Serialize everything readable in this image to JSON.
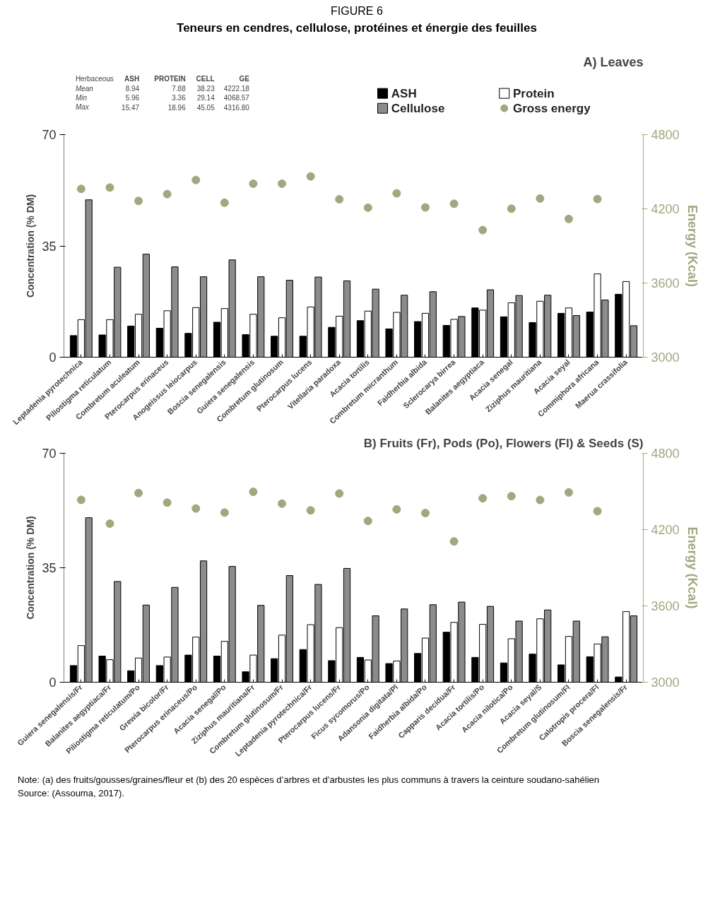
{
  "chart_data": [
    {
      "type": "bar",
      "title": "A) Leaves",
      "categories": [
        "Leptadenia pyrotechnica",
        "Piliostigma reticulatum",
        "Combretum aculeatum",
        "Pterocarpus erinaceus",
        "Anogeissus leiocarpus",
        "Boscia senegalensis",
        "Guiera senegalensis",
        "Combretum glutinosum",
        "Pterocarpus lucens",
        "Vitellaria paradoxa",
        "Acacia tortilis",
        "Combretum micranthum",
        "Faidherbia albida",
        "Sclerocarya birrea",
        "Balanites aegyptiaca",
        "Acacia senegal",
        "Ziziphus mauritiana",
        "Acacia seyal",
        "Commiphora africana",
        "Maerua crassifolia"
      ],
      "series": [
        {
          "name": "ASH",
          "color": "#000000",
          "values": [
            6.8,
            7.0,
            9.8,
            9.1,
            7.5,
            11.0,
            7.1,
            6.6,
            6.6,
            9.4,
            11.5,
            8.9,
            11.2,
            10.0,
            15.5,
            12.7,
            10.9,
            13.8,
            14.2,
            19.8
          ]
        },
        {
          "name": "Protein",
          "color": "#ffffff",
          "values": [
            11.8,
            11.8,
            13.5,
            14.6,
            15.6,
            15.3,
            13.5,
            12.4,
            15.8,
            12.9,
            14.5,
            14.1,
            13.8,
            11.9,
            14.8,
            17.1,
            17.6,
            15.5,
            26.2,
            23.8
          ]
        },
        {
          "name": "Cellulose",
          "color": "#8c8c8c",
          "values": [
            49.5,
            28.3,
            32.4,
            28.4,
            25.3,
            30.6,
            25.3,
            24.2,
            25.2,
            24.0,
            21.4,
            19.5,
            20.6,
            12.8,
            21.2,
            19.4,
            19.5,
            13.1,
            18.0,
            9.9
          ]
        },
        {
          "name": "Gross energy",
          "type": "scatter",
          "axis": "y2",
          "color": "#a3a67e",
          "values": [
            4361,
            4372,
            4264,
            4319,
            4433,
            4249,
            4403,
            4403,
            4462,
            4277,
            4209,
            4325,
            4211,
            4241,
            4028,
            4201,
            4283,
            4118,
            4279,
            null
          ]
        }
      ],
      "ylabel": "Concentration (% DM)",
      "y2label": "Energy (Kcal)",
      "ylim": [
        0,
        70
      ],
      "yticks": [
        0,
        35,
        70
      ],
      "y2lim": [
        3000,
        4800
      ],
      "y2ticks": [
        3000,
        3600,
        4200,
        4800
      ],
      "marker": "circle",
      "grid": false,
      "legend": "top right",
      "annotations": [
        "FIGURE 6",
        "Teneurs en cendres, cellulose, protéines et énergie des feuilles",
        "Herbaceous ASH PROTEIN CELL GE",
        "Mean 8.94 7.88 38.23 4222.18",
        "Min 5.96 3.36 29.14 4068.57",
        "Max 15.47 18.96 45.05 4316.80"
      ]
    },
    {
      "type": "bar",
      "title": "B) Fruits (Fr), Pods (Po), Flowers (Fl) & Seeds (S)",
      "categories": [
        "Guiera senegalensis/Fr",
        "Balanites aegyptiaca/Fr",
        "Piliostigma reticulatum/Po",
        "Grewia bicolor/Fr",
        "Pterocarpus erinaceus/Po",
        "Acacia senegal/Po",
        "Ziziphus mauritiana/Fr",
        "Combretum glutinosum/Fr",
        "Leptadenia pyrotechnica/Fr",
        "Pterocarpus lucens/Fr",
        "Ficus sycomorus/Po",
        "Adansonia digitata/Pl",
        "Faidherbia albida/Po",
        "Capparis decidua/Fr",
        "Acacia tortilis/Po",
        "Acacia nilotica/Po",
        "Acacia seyal/S",
        "Combretum glutinosum/Fl",
        "Calotropis procera/Fl",
        "Boscia senegalensis/Fr"
      ],
      "series": [
        {
          "color": "#000000",
          "values": [
            5.1,
            8.0,
            3.5,
            5.1,
            8.3,
            8.0,
            3.2,
            7.2,
            10.0,
            6.6,
            7.6,
            5.7,
            8.8,
            15.3,
            7.6,
            5.9,
            8.6,
            5.3,
            7.8,
            1.6
          ]
        },
        {
          "color": "#ffffff",
          "values": [
            11.2,
            6.9,
            7.4,
            7.7,
            13.8,
            12.5,
            8.3,
            14.4,
            17.6,
            16.7,
            6.8,
            6.5,
            13.5,
            18.3,
            17.7,
            13.3,
            19.4,
            14.0,
            11.7,
            21.6
          ]
        },
        {
          "color": "#8c8c8c",
          "values": [
            50.3,
            30.8,
            23.6,
            29.0,
            37.1,
            35.4,
            23.5,
            32.6,
            29.9,
            34.8,
            20.3,
            22.4,
            23.7,
            24.5,
            23.2,
            18.7,
            22.1,
            18.7,
            13.9,
            20.3
          ]
        },
        {
          "type": "scatter",
          "axis": "y2",
          "color": "#a3a67e",
          "values": [
            4434,
            4247,
            4487,
            4412,
            4366,
            4334,
            4497,
            4404,
            4351,
            4484,
            4268,
            4359,
            4330,
            4107,
            4446,
            4463,
            4433,
            4492,
            4345,
            null
          ]
        }
      ],
      "ylabel": "Concentration (% DM)",
      "y2label": "Energy (Kcal)",
      "ylim": [
        0,
        70
      ],
      "yticks": [
        0,
        35,
        70
      ],
      "y2lim": [
        3000,
        4800
      ],
      "y2ticks": [
        3000,
        3600,
        4200,
        4800
      ],
      "marker": "circle",
      "grid": false,
      "annotations": [
        "Note: (a) des fruits/gousses/graines/fleur et (b) des 20 espèces d’arbres et d’arbustes les plus communs à travers la ceinture soudano-sahélien",
        "Source: (Assouma, 2017)."
      ]
    }
  ]
}
